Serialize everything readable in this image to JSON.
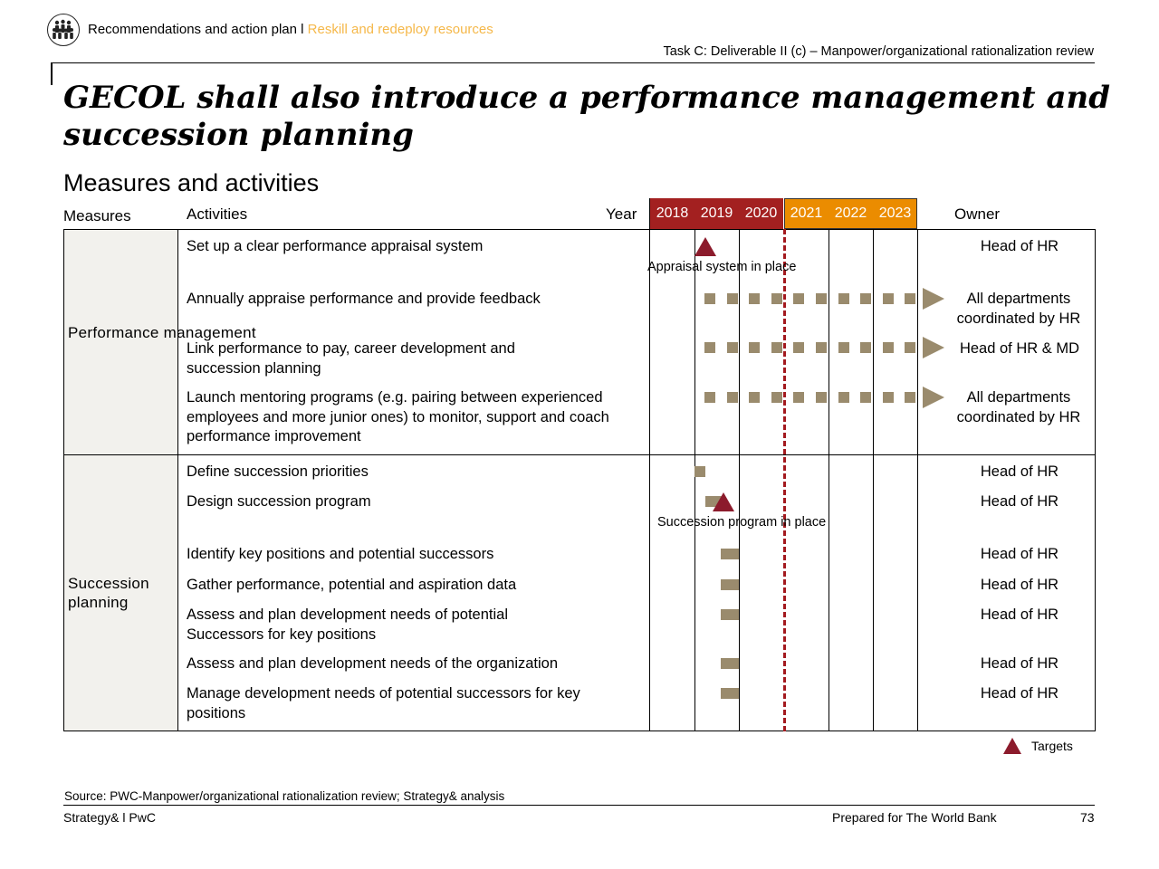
{
  "header": {
    "section": "Recommendations and action plan l ",
    "section_accent": "Reskill and redeploy resources",
    "task": "Task C: Deliverable II (c) – Manpower/organizational rationalization review"
  },
  "title": "GECOL shall also introduce a performance management and succession planning",
  "subtitle": "Measures and activities",
  "columns": {
    "measures": "Measures",
    "activities": "Activities",
    "year": "Year",
    "owner": "Owner"
  },
  "years": [
    "2018",
    "2019",
    "2020",
    "2021",
    "2022",
    "2023"
  ],
  "colors": {
    "past_year": "#a32020",
    "future_year": "#eb8c00",
    "activity_bar": "#9a8b6d",
    "target": "#8c1b2c",
    "accent": "#f5b84a"
  },
  "groups": [
    {
      "measure": "Performance management",
      "activities": [
        {
          "text": "Set up a clear performance appraisal system",
          "owner": "Head of HR"
        },
        {
          "text": "Annually appraise performance and provide feedback",
          "owner": "All departments coordinated by HR"
        },
        {
          "text": "Link performance to pay, career development and succession planning",
          "owner": "Head of HR & MD"
        },
        {
          "text": "Launch mentoring programs (e.g. pairing between experienced employees and more junior ones) to monitor, support and coach performance improvement",
          "owner": "All departments coordinated by HR"
        }
      ]
    },
    {
      "measure": "Succession planning",
      "activities": [
        {
          "text": "Define succession priorities",
          "owner": "Head of HR"
        },
        {
          "text": "Design succession program",
          "owner": "Head of HR"
        },
        {
          "text": "Identify key positions and potential successors",
          "owner": "Head of HR"
        },
        {
          "text": "Gather performance, potential and aspiration data",
          "owner": "Head of HR"
        },
        {
          "text": "Assess and plan development needs of potential Successors for key positions",
          "owner": "Head of HR"
        },
        {
          "text": "Assess and plan development needs of the organization",
          "owner": "Head of HR"
        },
        {
          "text": "Manage development needs of potential successors for key positions",
          "owner": "Head of HR"
        }
      ]
    }
  ],
  "annotations": {
    "appraisal": "Appraisal system in place",
    "succession": "Succession program in place"
  },
  "legend": {
    "targets": "Targets"
  },
  "source": "Source: PWC-Manpower/organizational rationalization review; Strategy& analysis",
  "footer": {
    "left": "Strategy& l PwC",
    "center": "Prepared for The World Bank",
    "page": "73"
  }
}
